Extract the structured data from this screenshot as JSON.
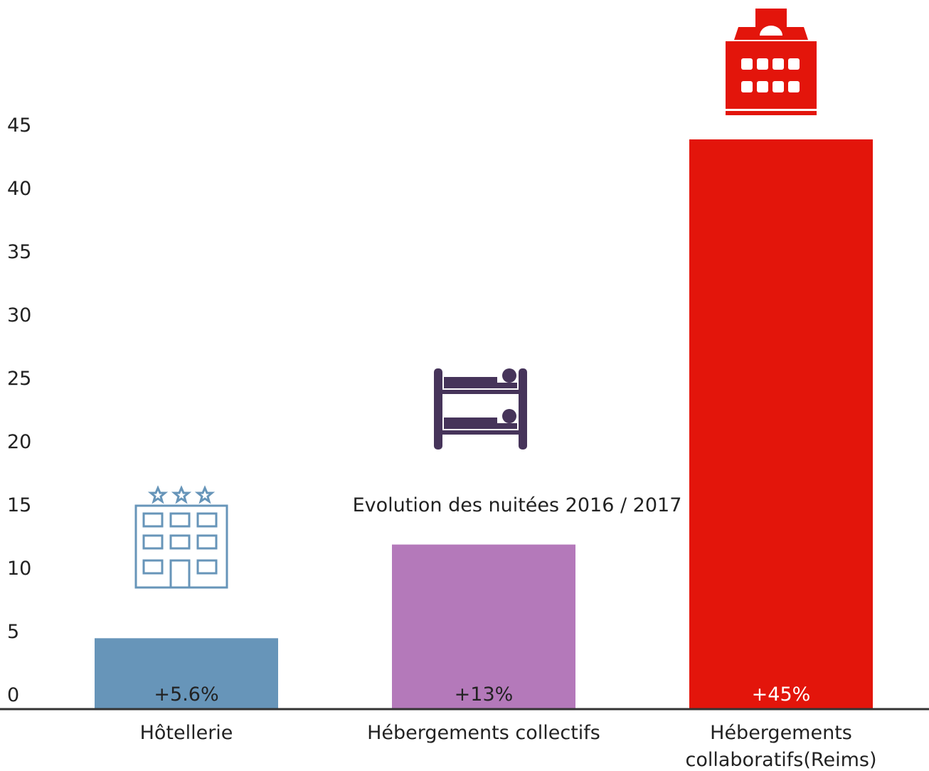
{
  "chart_data": {
    "type": "bar",
    "annotation": "Evolution des nuitées 2016 / 2017",
    "categories": [
      "Hôtellerie",
      "Hébergements collectifs",
      "Hébergements collaboratifs(Reims)"
    ],
    "values": [
      5.6,
      13,
      45
    ],
    "value_labels": [
      "+5.6%",
      "+13%",
      "+45%"
    ],
    "colors": [
      "#6795b9",
      "#b479ba",
      "#e3150b"
    ],
    "ylim": [
      0,
      45
    ],
    "yticks": [
      0,
      5,
      10,
      15,
      20,
      25,
      30,
      35,
      40,
      45
    ],
    "grid": false
  }
}
